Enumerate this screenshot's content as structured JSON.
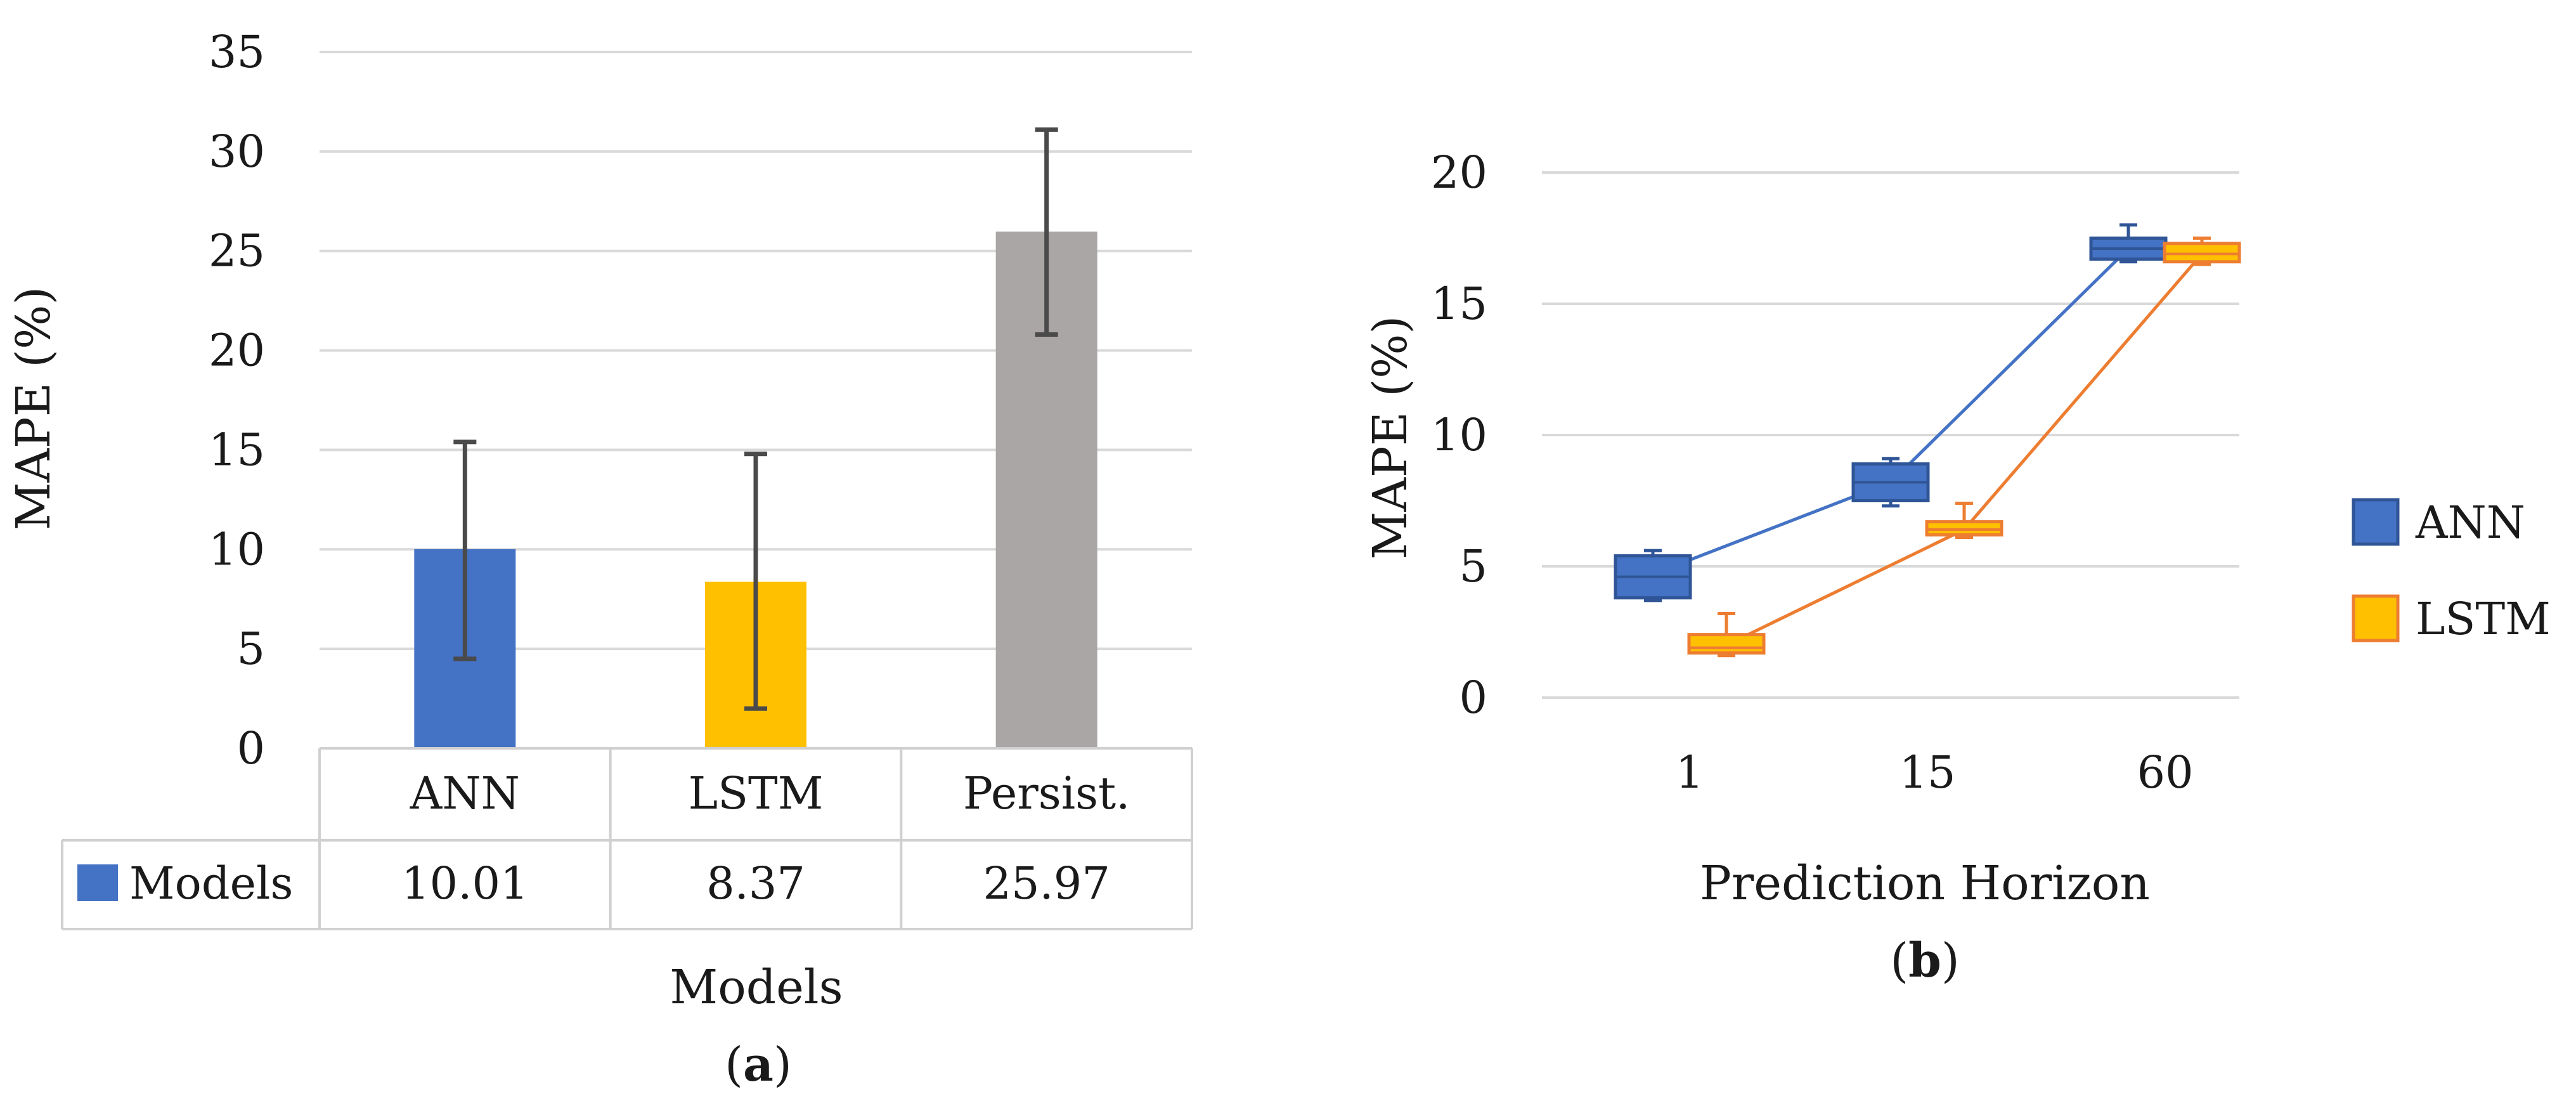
{
  "chart_data": [
    {
      "type": "bar",
      "panel_label": "a",
      "ylabel": "MAPE (%)",
      "xlabel": "Models",
      "ylim": [
        0,
        35
      ],
      "yticks": [
        0,
        5,
        10,
        15,
        20,
        25,
        30,
        35
      ],
      "grid": true,
      "categories": [
        "ANN",
        "LSTM",
        "Persist."
      ],
      "series": [
        {
          "name": "Models",
          "values": [
            10.01,
            8.37,
            25.97
          ],
          "error_low": [
            4.5,
            2.0,
            20.8
          ],
          "error_high": [
            15.4,
            14.8,
            31.1
          ],
          "colors": [
            "#4472c4",
            "#ffc000",
            "#a9a6a5"
          ]
        }
      ],
      "data_table": {
        "row_label": "Models",
        "values_text": [
          "10.01",
          "8.37",
          "25.97"
        ]
      }
    },
    {
      "type": "box",
      "panel_label": "b",
      "ylabel": "MAPE (%)",
      "xlabel": "Prediction Horizon",
      "ylim": [
        0,
        20
      ],
      "yticks": [
        0,
        5,
        10,
        15,
        20
      ],
      "grid": true,
      "categories": [
        "1",
        "15",
        "60"
      ],
      "legend_position": "right",
      "series": [
        {
          "name": "ANN",
          "color": "#4472c4",
          "edge": "#2f5597",
          "boxes": [
            {
              "min": 3.7,
              "q1": 3.8,
              "median": 4.6,
              "q3": 5.4,
              "max": 5.6,
              "mean": 4.7
            },
            {
              "min": 7.3,
              "q1": 7.5,
              "median": 8.2,
              "q3": 8.9,
              "max": 9.1,
              "mean": 8.2
            },
            {
              "min": 16.6,
              "q1": 16.7,
              "median": 17.1,
              "q3": 17.5,
              "max": 18.0,
              "mean": 17.1
            }
          ]
        },
        {
          "name": "LSTM",
          "color": "#ffc000",
          "edge": "#ed7d31",
          "boxes": [
            {
              "min": 1.6,
              "q1": 1.7,
              "median": 1.9,
              "q3": 2.4,
              "max": 3.2,
              "mean": 2.0
            },
            {
              "min": 6.1,
              "q1": 6.2,
              "median": 6.4,
              "q3": 6.7,
              "max": 7.4,
              "mean": 6.4
            },
            {
              "min": 16.5,
              "q1": 16.6,
              "median": 16.9,
              "q3": 17.3,
              "max": 17.5,
              "mean": 16.9
            }
          ]
        }
      ]
    }
  ]
}
